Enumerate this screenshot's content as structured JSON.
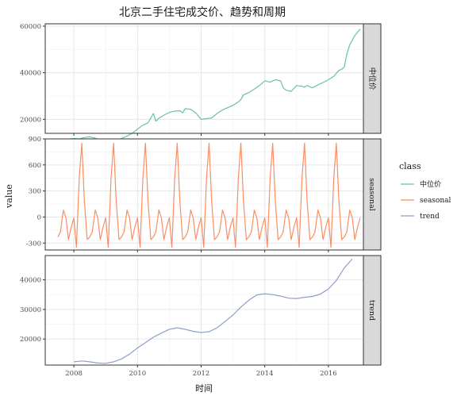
{
  "chart_data": {
    "type": "line",
    "title": "北京二手住宅成交价、趋势和周期",
    "xlabel": "时间",
    "ylabel": "value",
    "x_ticks": [
      2008,
      2010,
      2012,
      2014,
      2016
    ],
    "xlim": [
      2007.1,
      2017.1
    ],
    "legend": {
      "title": "class",
      "position": "right"
    },
    "grid": true,
    "facets": [
      {
        "label": "中位价",
        "color": "#66c2a5",
        "ylim": [
          14000,
          61000
        ],
        "y_ticks": [
          20000,
          40000,
          60000
        ],
        "series": {
          "name": "中位价",
          "x": [
            2007.5,
            2007.67,
            2007.83,
            2008.0,
            2008.17,
            2008.33,
            2008.5,
            2008.67,
            2008.83,
            2009.0,
            2009.17,
            2009.33,
            2009.5,
            2009.67,
            2009.83,
            2010.0,
            2010.17,
            2010.33,
            2010.5,
            2010.58,
            2010.67,
            2010.83,
            2011.0,
            2011.17,
            2011.33,
            2011.42,
            2011.5,
            2011.67,
            2011.83,
            2012.0,
            2012.17,
            2012.33,
            2012.5,
            2012.67,
            2012.83,
            2013.0,
            2013.17,
            2013.25,
            2013.33,
            2013.5,
            2013.67,
            2013.83,
            2014.0,
            2014.17,
            2014.33,
            2014.5,
            2014.58,
            2014.67,
            2014.83,
            2015.0,
            2015.17,
            2015.25,
            2015.33,
            2015.5,
            2015.67,
            2015.83,
            2016.0,
            2016.17,
            2016.33,
            2016.42,
            2016.5,
            2016.58,
            2016.67,
            2016.83,
            2017.0
          ],
          "y": [
            9500,
            10500,
            11500,
            11800,
            11600,
            12200,
            12500,
            11900,
            11200,
            10800,
            10400,
            10700,
            11800,
            12800,
            14000,
            15800,
            17500,
            18500,
            22500,
            19200,
            20500,
            21800,
            23000,
            23500,
            23700,
            22800,
            24600,
            24300,
            22800,
            20000,
            20300,
            20600,
            22500,
            24000,
            25000,
            26000,
            27500,
            28500,
            30500,
            31500,
            33000,
            34500,
            36500,
            36000,
            37000,
            36500,
            33500,
            32500,
            32000,
            34500,
            34200,
            33800,
            34500,
            33500,
            34800,
            35800,
            37000,
            38500,
            41000,
            41500,
            42500,
            48000,
            52000,
            56000,
            58800
          ]
        }
      },
      {
        "label": "seasonal",
        "color": "#fc8d62",
        "ylim": [
          -380,
          900
        ],
        "y_ticks": [
          -300,
          0,
          300,
          600,
          900
        ],
        "series": {
          "name": "seasonal",
          "x": [
            2007.5,
            2007.58,
            2007.67,
            2007.75,
            2007.83,
            2007.92,
            2008.0,
            2008.08,
            2008.17,
            2008.25,
            2008.33,
            2008.42,
            2008.5,
            2008.58,
            2008.67,
            2008.75,
            2008.83,
            2008.92,
            2009.0,
            2009.08,
            2009.17,
            2009.25,
            2009.33,
            2009.42,
            2009.5,
            2009.58,
            2009.67,
            2009.75,
            2009.83,
            2009.92,
            2010.0,
            2010.08,
            2010.17,
            2010.25,
            2010.33,
            2010.42,
            2010.5,
            2010.58,
            2010.67,
            2010.75,
            2010.83,
            2010.92,
            2011.0,
            2011.08,
            2011.17,
            2011.25,
            2011.33,
            2011.42,
            2011.5,
            2011.58,
            2011.67,
            2011.75,
            2011.83,
            2011.92,
            2012.0,
            2012.08,
            2012.17,
            2012.25,
            2012.33,
            2012.42,
            2012.5,
            2012.58,
            2012.67,
            2012.75,
            2012.83,
            2012.92,
            2013.0,
            2013.08,
            2013.17,
            2013.25,
            2013.33,
            2013.42,
            2013.5,
            2013.58,
            2013.67,
            2013.75,
            2013.83,
            2013.92,
            2014.0,
            2014.08,
            2014.17,
            2014.25,
            2014.33,
            2014.42,
            2014.5,
            2014.58,
            2014.67,
            2014.75,
            2014.83,
            2014.92,
            2015.0,
            2015.08,
            2015.17,
            2015.25,
            2015.33,
            2015.42,
            2015.5,
            2015.58,
            2015.67,
            2015.75,
            2015.83,
            2015.92,
            2016.0,
            2016.08,
            2016.17,
            2016.25,
            2016.33,
            2016.42,
            2016.5,
            2016.58,
            2016.67,
            2016.75,
            2016.83,
            2016.92,
            2017.0
          ],
          "y": [
            -230,
            -170,
            80,
            -10,
            -260,
            -110,
            -10,
            -350,
            450,
            850,
            190,
            -260,
            -230,
            -170,
            80,
            -10,
            -260,
            -110,
            -10,
            -350,
            450,
            850,
            190,
            -260,
            -230,
            -170,
            80,
            -10,
            -260,
            -110,
            -10,
            -350,
            450,
            850,
            190,
            -260,
            -230,
            -170,
            80,
            -10,
            -260,
            -110,
            -10,
            -350,
            450,
            850,
            190,
            -260,
            -230,
            -170,
            80,
            -10,
            -260,
            -110,
            -10,
            -350,
            450,
            850,
            190,
            -260,
            -230,
            -170,
            80,
            -10,
            -260,
            -110,
            -10,
            -350,
            450,
            850,
            190,
            -260,
            -230,
            -170,
            80,
            -10,
            -260,
            -110,
            -10,
            -350,
            450,
            850,
            190,
            -260,
            -230,
            -170,
            80,
            -10,
            -260,
            -110,
            -10,
            -350,
            450,
            850,
            190,
            -260,
            -230,
            -170,
            80,
            -10,
            -260,
            -110,
            -10,
            -350,
            450,
            850,
            190,
            -260,
            -230,
            -170,
            80,
            -10,
            -260,
            -110,
            -10
          ]
        }
      },
      {
        "label": "trend",
        "color": "#8da0cb",
        "ylim": [
          11200,
          48200
        ],
        "y_ticks": [
          20000,
          30000,
          40000
        ],
        "series": {
          "name": "trend",
          "x": [
            2008.0,
            2008.25,
            2008.5,
            2008.75,
            2009.0,
            2009.25,
            2009.5,
            2009.75,
            2010.0,
            2010.25,
            2010.5,
            2010.75,
            2011.0,
            2011.25,
            2011.5,
            2011.75,
            2012.0,
            2012.25,
            2012.5,
            2012.75,
            2013.0,
            2013.25,
            2013.5,
            2013.75,
            2014.0,
            2014.25,
            2014.5,
            2014.75,
            2015.0,
            2015.25,
            2015.5,
            2015.75,
            2016.0,
            2016.25,
            2016.5,
            2016.75
          ],
          "y": [
            12300,
            12600,
            12300,
            11900,
            11800,
            12300,
            13300,
            14900,
            17000,
            18800,
            20600,
            22000,
            23300,
            23800,
            23300,
            22600,
            22200,
            22500,
            23800,
            25900,
            28100,
            30800,
            33100,
            34900,
            35300,
            35000,
            34500,
            33800,
            33700,
            34100,
            34400,
            35200,
            36900,
            39800,
            44000,
            47100
          ]
        }
      }
    ]
  }
}
